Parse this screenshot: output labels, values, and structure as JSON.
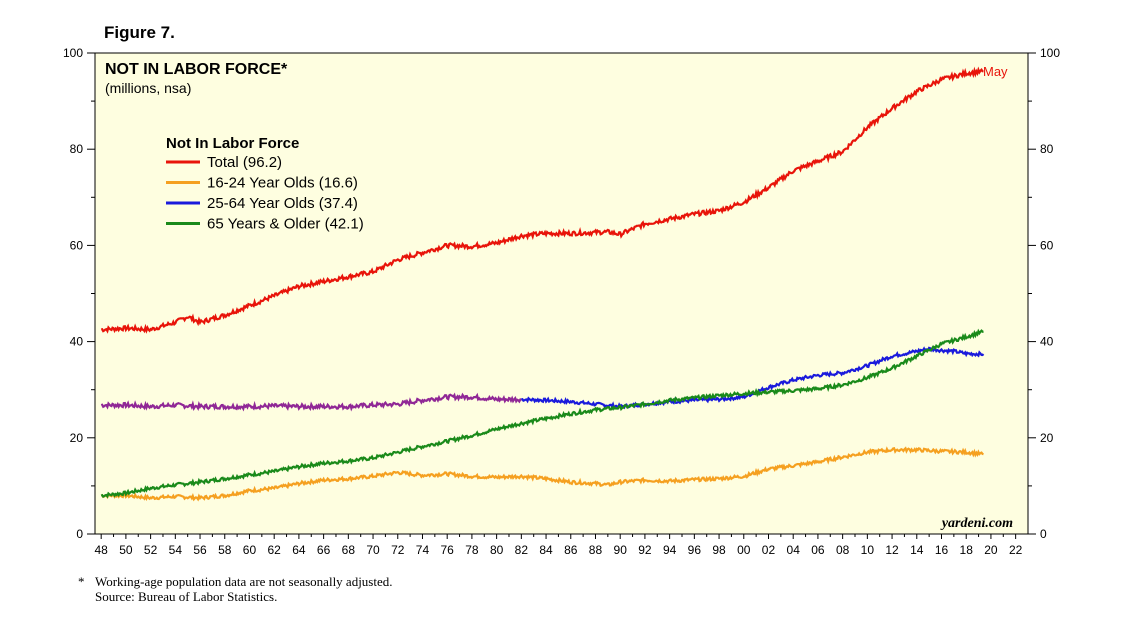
{
  "figure_label": "Figure 7.",
  "footnote": {
    "star": "*",
    "note": "Working-age population data are not seasonally adjusted.",
    "source": "Source: Bureau of Labor Statistics."
  },
  "chart_data": {
    "type": "line",
    "title": "NOT IN LABOR FORCE*",
    "subtitle": "(millions, nsa)",
    "legend_title": "Not In Labor Force",
    "watermark": "yardeni.com",
    "end_label": "May",
    "ylim": [
      0,
      100
    ],
    "yticks": [
      0,
      20,
      40,
      60,
      80,
      100
    ],
    "xlim": [
      1947.5,
      2023
    ],
    "xticks": [
      1948,
      1950,
      1952,
      1954,
      1956,
      1958,
      1960,
      1962,
      1964,
      1966,
      1968,
      1970,
      1972,
      1974,
      1976,
      1978,
      1980,
      1982,
      1984,
      1986,
      1988,
      1990,
      1992,
      1994,
      1996,
      1998,
      2000,
      2002,
      2004,
      2006,
      2008,
      2010,
      2012,
      2014,
      2016,
      2018,
      2020,
      2022
    ],
    "xticklabels": [
      "48",
      "50",
      "52",
      "54",
      "56",
      "58",
      "60",
      "62",
      "64",
      "66",
      "68",
      "70",
      "72",
      "74",
      "76",
      "78",
      "80",
      "82",
      "84",
      "86",
      "88",
      "90",
      "92",
      "94",
      "96",
      "98",
      "00",
      "02",
      "04",
      "06",
      "08",
      "10",
      "12",
      "14",
      "16",
      "18",
      "20",
      "22"
    ],
    "colors": {
      "background": "#fefee0",
      "total": "#e8140a",
      "youth": "#f5a020",
      "prime": "#1a1adc",
      "prime_early": "#902896",
      "senior": "#1a8a1a",
      "axis": "#000000"
    },
    "series": [
      {
        "name": "Total (96.2)",
        "color": "#e8140a",
        "x": [
          1948,
          1950,
          1952,
          1954,
          1955,
          1956,
          1958,
          1960,
          1962,
          1964,
          1966,
          1968,
          1970,
          1972,
          1974,
          1976,
          1978,
          1980,
          1982,
          1984,
          1986,
          1988,
          1989,
          1990,
          1992,
          1994,
          1996,
          1998,
          2000,
          2002,
          2004,
          2006,
          2008,
          2010,
          2012,
          2014,
          2016,
          2018,
          2019.4
        ],
        "y": [
          42.5,
          42.8,
          42.5,
          44.0,
          45.2,
          44.0,
          45.5,
          47.5,
          49.5,
          51.5,
          52.5,
          53.5,
          54.5,
          57.0,
          58.5,
          60.0,
          59.8,
          60.5,
          62.0,
          62.5,
          62.5,
          62.7,
          62.8,
          62.3,
          64.5,
          65.5,
          66.5,
          67.2,
          69.0,
          72.0,
          75.5,
          77.5,
          79.5,
          84.5,
          88.5,
          92.0,
          94.5,
          95.8,
          96.2
        ]
      },
      {
        "name": "16-24 Year Olds (16.6)",
        "color": "#f5a020",
        "x": [
          1948,
          1950,
          1952,
          1954,
          1956,
          1958,
          1960,
          1962,
          1964,
          1966,
          1968,
          1970,
          1972,
          1974,
          1976,
          1978,
          1980,
          1982,
          1984,
          1986,
          1988,
          1989,
          1990,
          1992,
          1994,
          1996,
          1998,
          2000,
          2002,
          2004,
          2006,
          2008,
          2010,
          2012,
          2014,
          2016,
          2018,
          2019.4
        ],
        "y": [
          8.0,
          8.0,
          7.5,
          7.8,
          7.5,
          8.0,
          9.0,
          9.5,
          10.5,
          11.2,
          11.5,
          12.0,
          12.8,
          12.2,
          12.5,
          12.0,
          11.8,
          12.0,
          11.5,
          10.8,
          10.5,
          10.2,
          10.8,
          11.2,
          11.0,
          11.3,
          11.5,
          12.0,
          13.5,
          14.2,
          15.0,
          16.0,
          17.0,
          17.5,
          17.5,
          17.2,
          17.0,
          16.6
        ]
      },
      {
        "name": "25-64 Year Olds (37.4)",
        "color": "#1a1adc",
        "x": [
          1982,
          1984,
          1986,
          1988,
          1990,
          1992,
          1994,
          1996,
          1998,
          2000,
          2002,
          2004,
          2006,
          2008,
          2010,
          2012,
          2014,
          2015,
          2016,
          2017,
          2018,
          2019.4
        ],
        "y": [
          28.0,
          27.8,
          27.5,
          27.0,
          26.5,
          27.0,
          27.5,
          27.8,
          28.0,
          28.5,
          30.5,
          32.0,
          33.0,
          33.5,
          35.0,
          37.0,
          38.0,
          38.5,
          38.2,
          38.0,
          37.5,
          37.4
        ]
      },
      {
        "name": "65 Years & Older (42.1)",
        "color": "#1a8a1a",
        "x": [
          1948,
          1950,
          1952,
          1954,
          1956,
          1958,
          1960,
          1962,
          1964,
          1966,
          1968,
          1970,
          1972,
          1974,
          1976,
          1978,
          1980,
          1982,
          1984,
          1986,
          1988,
          1990,
          1992,
          1994,
          1996,
          1998,
          2000,
          2002,
          2004,
          2006,
          2008,
          2010,
          2012,
          2014,
          2016,
          2018,
          2019.4
        ],
        "y": [
          8.0,
          8.5,
          9.5,
          10.2,
          10.8,
          11.5,
          12.3,
          13.0,
          14.0,
          14.7,
          15.2,
          15.8,
          17.0,
          18.2,
          19.3,
          20.5,
          21.8,
          23.0,
          24.0,
          25.0,
          25.8,
          26.3,
          27.0,
          27.8,
          28.3,
          28.8,
          29.2,
          29.5,
          29.8,
          30.2,
          31.0,
          32.5,
          34.5,
          37.0,
          39.5,
          41.0,
          42.1
        ]
      }
    ],
    "prime_early": {
      "color": "#902896",
      "x": [
        1948,
        1950,
        1952,
        1954,
        1956,
        1958,
        1960,
        1962,
        1964,
        1966,
        1968,
        1970,
        1972,
        1974,
        1976,
        1978,
        1980,
        1982
      ],
      "y": [
        26.8,
        26.8,
        26.5,
        26.8,
        26.5,
        26.5,
        26.5,
        26.6,
        26.5,
        26.5,
        26.5,
        26.8,
        27.0,
        27.8,
        28.5,
        28.5,
        28.0,
        28.0
      ]
    }
  }
}
